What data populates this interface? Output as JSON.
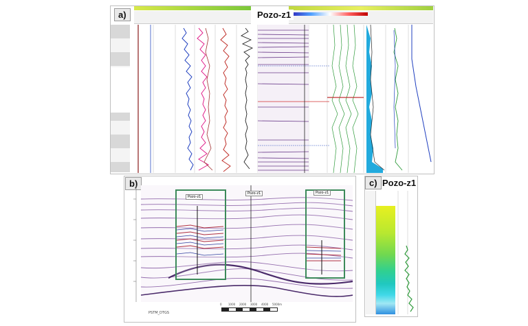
{
  "panel_a": {
    "label": "a)",
    "well_title": "Pozo-z1",
    "horizon_labels": [
      "",
      "",
      "",
      "",
      ""
    ]
  },
  "panel_b": {
    "label": "b)",
    "well_tags": [
      "Pozo-z1",
      "Pozo-z1",
      "Pozo-z1"
    ],
    "footer_text": "PSTM_DTGS",
    "scale_labels": [
      "0",
      "1000",
      "2000",
      "3000",
      "4000",
      "5000m"
    ]
  },
  "panel_c": {
    "label": "c)",
    "well_title": "Pozo-z1"
  },
  "colors": {
    "frame_green": "#3c8a5a",
    "log_blue": "#1f3fbf",
    "log_magenta": "#e0208a",
    "log_red": "#c0302a",
    "log_green": "#2e9a3a",
    "fill_cyan": "#22aadd",
    "seismic_purple": "#6a3a8a"
  }
}
